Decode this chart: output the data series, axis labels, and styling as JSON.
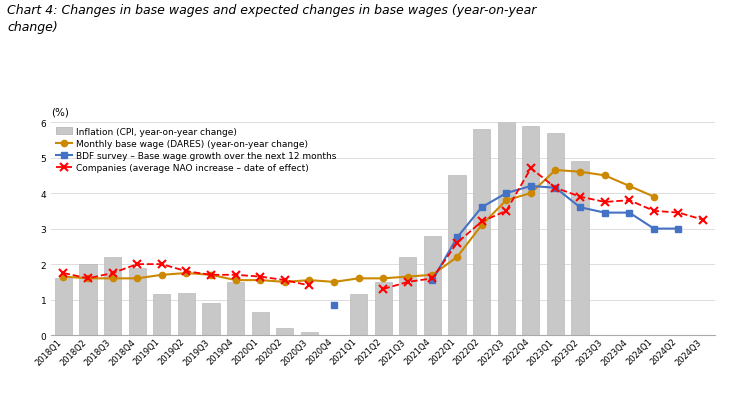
{
  "title": "Chart 4: Changes in base wages and expected changes in base wages (year-on-year\nchange)",
  "ylabel": "(%)",
  "ylim": [
    0,
    6
  ],
  "yticks": [
    0,
    1,
    2,
    3,
    4,
    5,
    6
  ],
  "quarters": [
    "2018Q1",
    "2018Q2",
    "2018Q3",
    "2018Q4",
    "2019Q1",
    "2019Q2",
    "2019Q3",
    "2019Q4",
    "2020Q1",
    "2020Q2",
    "2020Q3",
    "2020Q4",
    "2021Q1",
    "2021Q2",
    "2021Q3",
    "2021Q4",
    "2022Q1",
    "2022Q2",
    "2022Q3",
    "2022Q4",
    "2023Q1",
    "2023Q2",
    "2023Q3",
    "2023Q4",
    "2024Q1",
    "2024Q2",
    "2024Q3"
  ],
  "inflation": [
    1.6,
    2.0,
    2.2,
    1.9,
    1.15,
    1.2,
    0.9,
    1.5,
    0.65,
    0.2,
    0.1,
    0.0,
    1.15,
    1.5,
    2.2,
    2.8,
    4.5,
    5.8,
    6.1,
    5.9,
    5.7,
    4.9,
    null,
    null,
    null,
    null,
    null
  ],
  "dares": [
    1.65,
    1.6,
    1.6,
    1.6,
    1.7,
    1.75,
    1.7,
    1.55,
    1.55,
    1.5,
    1.55,
    1.5,
    1.6,
    1.6,
    1.65,
    1.7,
    2.2,
    3.1,
    3.8,
    4.0,
    4.65,
    4.6,
    4.5,
    4.2,
    3.9,
    null,
    null
  ],
  "bdf": [
    null,
    null,
    null,
    null,
    null,
    null,
    null,
    null,
    null,
    null,
    null,
    0.85,
    null,
    null,
    null,
    1.55,
    2.75,
    3.6,
    4.0,
    4.2,
    4.15,
    3.6,
    3.45,
    3.45,
    3.0,
    3.0,
    null
  ],
  "companies": [
    1.75,
    1.6,
    1.75,
    2.0,
    2.0,
    1.8,
    1.7,
    1.7,
    1.65,
    1.55,
    1.4,
    null,
    null,
    1.3,
    1.5,
    1.6,
    2.6,
    3.2,
    3.5,
    4.7,
    4.15,
    3.9,
    3.75,
    3.8,
    3.5,
    3.45,
    3.25
  ],
  "bar_color": "#c8c8c8",
  "bar_edge_color": "#b0b0b0",
  "dares_color": "#cc8800",
  "bdf_color": "#4472c4",
  "companies_color": "#ff0000",
  "background_color": "#ffffff",
  "title_fontsize": 9,
  "legend_fontsize": 6.5,
  "tick_fontsize": 6,
  "ylabel_fontsize": 7.5
}
